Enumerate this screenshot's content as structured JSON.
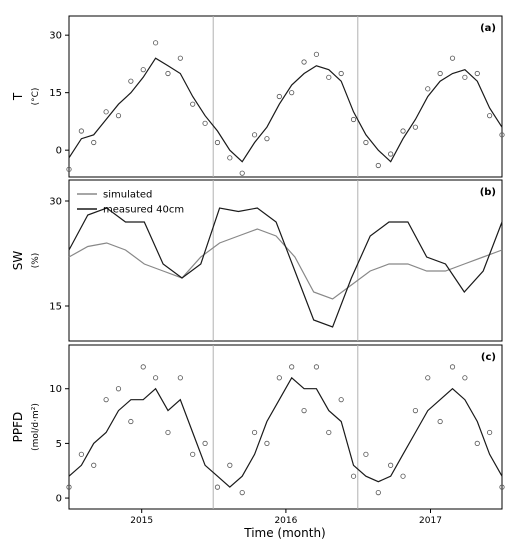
{
  "chart_data": {
    "type": "line",
    "xlabel": "Time (month)",
    "x_range": [
      "2014-07-01",
      "2017-07-01"
    ],
    "x_ticks": [
      "2015",
      "2016",
      "2017"
    ],
    "year_boundaries": [
      "2015-07-01",
      "2016-07-01"
    ],
    "panels": [
      {
        "tag": "(a)",
        "ylabel": "T",
        "yunit": "(°C)",
        "ylim": [
          -7,
          35
        ],
        "yticks": [
          0,
          15,
          30
        ],
        "series": [
          {
            "style": "line",
            "color": "#1a1a1a",
            "points": [
              [
                0,
                -2
              ],
              [
                0.25,
                3
              ],
              [
                0.5,
                4
              ],
              [
                0.75,
                8
              ],
              [
                1,
                12
              ],
              [
                1.25,
                15
              ],
              [
                1.5,
                19
              ],
              [
                1.75,
                24
              ],
              [
                2,
                22
              ],
              [
                2.25,
                20
              ],
              [
                2.5,
                14
              ],
              [
                2.75,
                9
              ],
              [
                3,
                5
              ],
              [
                3.25,
                0
              ],
              [
                3.5,
                -3
              ],
              [
                3.75,
                2
              ],
              [
                4,
                6
              ],
              [
                4.25,
                12
              ],
              [
                4.5,
                17
              ],
              [
                4.75,
                20
              ],
              [
                5,
                22
              ],
              [
                5.25,
                21
              ],
              [
                5.5,
                18
              ],
              [
                5.75,
                10
              ],
              [
                6,
                4
              ],
              [
                6.25,
                0
              ],
              [
                6.5,
                -3
              ],
              [
                6.75,
                3
              ],
              [
                7,
                8
              ],
              [
                7.25,
                14
              ],
              [
                7.5,
                18
              ],
              [
                7.75,
                20
              ],
              [
                8,
                21
              ],
              [
                8.25,
                18
              ],
              [
                8.5,
                11
              ],
              [
                8.75,
                6
              ]
            ]
          },
          {
            "style": "markers",
            "color": "#555555",
            "points": [
              [
                0,
                -5
              ],
              [
                0.25,
                5
              ],
              [
                0.5,
                2
              ],
              [
                0.75,
                10
              ],
              [
                1,
                9
              ],
              [
                1.25,
                18
              ],
              [
                1.5,
                21
              ],
              [
                1.75,
                28
              ],
              [
                2,
                20
              ],
              [
                2.25,
                24
              ],
              [
                2.5,
                12
              ],
              [
                2.75,
                7
              ],
              [
                3,
                2
              ],
              [
                3.25,
                -2
              ],
              [
                3.5,
                -6
              ],
              [
                3.75,
                4
              ],
              [
                4,
                3
              ],
              [
                4.25,
                14
              ],
              [
                4.5,
                15
              ],
              [
                4.75,
                23
              ],
              [
                5,
                25
              ],
              [
                5.25,
                19
              ],
              [
                5.5,
                20
              ],
              [
                5.75,
                8
              ],
              [
                6,
                2
              ],
              [
                6.25,
                -4
              ],
              [
                6.5,
                -1
              ],
              [
                6.75,
                5
              ],
              [
                7,
                6
              ],
              [
                7.25,
                16
              ],
              [
                7.5,
                20
              ],
              [
                7.75,
                24
              ],
              [
                8,
                19
              ],
              [
                8.25,
                20
              ],
              [
                8.5,
                9
              ],
              [
                8.75,
                4
              ]
            ]
          }
        ]
      },
      {
        "tag": "(b)",
        "ylabel": "SW",
        "yunit": "(%)",
        "ylim": [
          10,
          33
        ],
        "yticks": [
          15,
          30
        ],
        "legend": {
          "position": "top-left",
          "entries": [
            "simulated",
            "measured 40cm"
          ]
        },
        "series": [
          {
            "name": "simulated",
            "style": "line",
            "color": "#888888",
            "points": [
              [
                0,
                22
              ],
              [
                0.5,
                23.5
              ],
              [
                1,
                24
              ],
              [
                1.5,
                23
              ],
              [
                2,
                21
              ],
              [
                2.5,
                20
              ],
              [
                3,
                19
              ],
              [
                3.5,
                22
              ],
              [
                4,
                24
              ],
              [
                4.5,
                25
              ],
              [
                5,
                26
              ],
              [
                5.5,
                25
              ],
              [
                6,
                22
              ],
              [
                6.5,
                17
              ],
              [
                7,
                16
              ],
              [
                7.5,
                18
              ],
              [
                8,
                20
              ],
              [
                8.5,
                21
              ],
              [
                9,
                21
              ],
              [
                9.5,
                20
              ],
              [
                10,
                20
              ],
              [
                10.5,
                21
              ],
              [
                11,
                22
              ],
              [
                11.5,
                23
              ]
            ]
          },
          {
            "name": "measured 40cm",
            "style": "line",
            "color": "#1a1a1a",
            "points": [
              [
                0,
                23
              ],
              [
                0.5,
                28
              ],
              [
                1,
                29
              ],
              [
                1.5,
                27
              ],
              [
                2,
                27
              ],
              [
                2.5,
                21
              ],
              [
                3,
                19
              ],
              [
                3.5,
                21
              ],
              [
                4,
                29
              ],
              [
                4.5,
                28.5
              ],
              [
                5,
                29
              ],
              [
                5.5,
                27
              ],
              [
                6,
                20
              ],
              [
                6.5,
                13
              ],
              [
                7,
                12
              ],
              [
                7.5,
                19
              ],
              [
                8,
                25
              ],
              [
                8.5,
                27
              ],
              [
                9,
                27
              ],
              [
                9.5,
                22
              ],
              [
                10,
                21
              ],
              [
                10.5,
                17
              ],
              [
                11,
                20
              ],
              [
                11.5,
                27
              ]
            ]
          }
        ]
      },
      {
        "tag": "(c)",
        "ylabel": "PPFD",
        "yunit": "(mol/d·m²)",
        "ylim": [
          -1,
          14
        ],
        "yticks": [
          0,
          5,
          10
        ],
        "series": [
          {
            "style": "line",
            "color": "#1a1a1a",
            "points": [
              [
                0,
                2
              ],
              [
                0.25,
                3
              ],
              [
                0.5,
                5
              ],
              [
                0.75,
                6
              ],
              [
                1,
                8
              ],
              [
                1.25,
                9
              ],
              [
                1.5,
                9
              ],
              [
                1.75,
                10
              ],
              [
                2,
                8
              ],
              [
                2.25,
                9
              ],
              [
                2.5,
                6
              ],
              [
                2.75,
                3
              ],
              [
                3,
                2
              ],
              [
                3.25,
                1
              ],
              [
                3.5,
                2
              ],
              [
                3.75,
                4
              ],
              [
                4,
                7
              ],
              [
                4.25,
                9
              ],
              [
                4.5,
                11
              ],
              [
                4.75,
                10
              ],
              [
                5,
                10
              ],
              [
                5.25,
                8
              ],
              [
                5.5,
                7
              ],
              [
                5.75,
                3
              ],
              [
                6,
                2
              ],
              [
                6.25,
                1.5
              ],
              [
                6.5,
                2
              ],
              [
                6.75,
                4
              ],
              [
                7,
                6
              ],
              [
                7.25,
                8
              ],
              [
                7.5,
                9
              ],
              [
                7.75,
                10
              ],
              [
                8,
                9
              ],
              [
                8.25,
                7
              ],
              [
                8.5,
                4
              ],
              [
                8.75,
                2
              ]
            ]
          },
          {
            "style": "markers",
            "color": "#555555",
            "points": [
              [
                0,
                1
              ],
              [
                0.25,
                4
              ],
              [
                0.5,
                3
              ],
              [
                0.75,
                9
              ],
              [
                1,
                10
              ],
              [
                1.25,
                7
              ],
              [
                1.5,
                12
              ],
              [
                1.75,
                11
              ],
              [
                2,
                6
              ],
              [
                2.25,
                11
              ],
              [
                2.5,
                4
              ],
              [
                2.75,
                5
              ],
              [
                3,
                1
              ],
              [
                3.25,
                3
              ],
              [
                3.5,
                0.5
              ],
              [
                3.75,
                6
              ],
              [
                4,
                5
              ],
              [
                4.25,
                11
              ],
              [
                4.5,
                12
              ],
              [
                4.75,
                8
              ],
              [
                5,
                12
              ],
              [
                5.25,
                6
              ],
              [
                5.5,
                9
              ],
              [
                5.75,
                2
              ],
              [
                6,
                4
              ],
              [
                6.25,
                0.5
              ],
              [
                6.5,
                3
              ],
              [
                6.75,
                2
              ],
              [
                7,
                8
              ],
              [
                7.25,
                11
              ],
              [
                7.5,
                7
              ],
              [
                7.75,
                12
              ],
              [
                8,
                11
              ],
              [
                8.25,
                5
              ],
              [
                8.5,
                6
              ],
              [
                8.75,
                1
              ]
            ]
          }
        ]
      }
    ]
  }
}
